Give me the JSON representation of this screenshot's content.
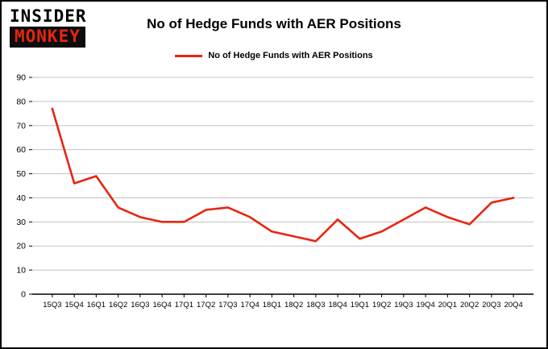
{
  "header": {
    "logo_line1": "INSIDER",
    "logo_line2": "MONKEY",
    "title": "No of Hedge Funds with AER Positions"
  },
  "legend": {
    "label": "No of Hedge Funds with AER Positions",
    "color": "#e8250f"
  },
  "colors": {
    "line": "#e8250f",
    "grid": "#c3c3c3",
    "axis": "#000000",
    "logo_red": "#e8250f",
    "logo_black": "#0d0d0d",
    "text": "#000000"
  },
  "chart_data": {
    "type": "line",
    "title": "No of Hedge Funds with AER Positions",
    "categories": [
      "15Q3",
      "15Q4",
      "16Q1",
      "16Q2",
      "16Q3",
      "16Q4",
      "17Q1",
      "17Q2",
      "17Q3",
      "17Q4",
      "18Q1",
      "18Q2",
      "18Q3",
      "18Q4",
      "19Q1",
      "19Q2",
      "19Q3",
      "19Q4",
      "20Q1",
      "20Q2",
      "20Q3",
      "20Q4"
    ],
    "values": [
      77,
      46,
      49,
      36,
      32,
      30,
      30,
      35,
      36,
      32,
      26,
      24,
      22,
      31,
      23,
      26,
      31,
      36,
      32,
      29,
      38,
      40
    ],
    "xlabel": "",
    "ylabel": "",
    "ylim": [
      0,
      90
    ],
    "ytick_step": 10,
    "grid": true,
    "legend_position": "top-center",
    "line_color": "#e8250f"
  }
}
